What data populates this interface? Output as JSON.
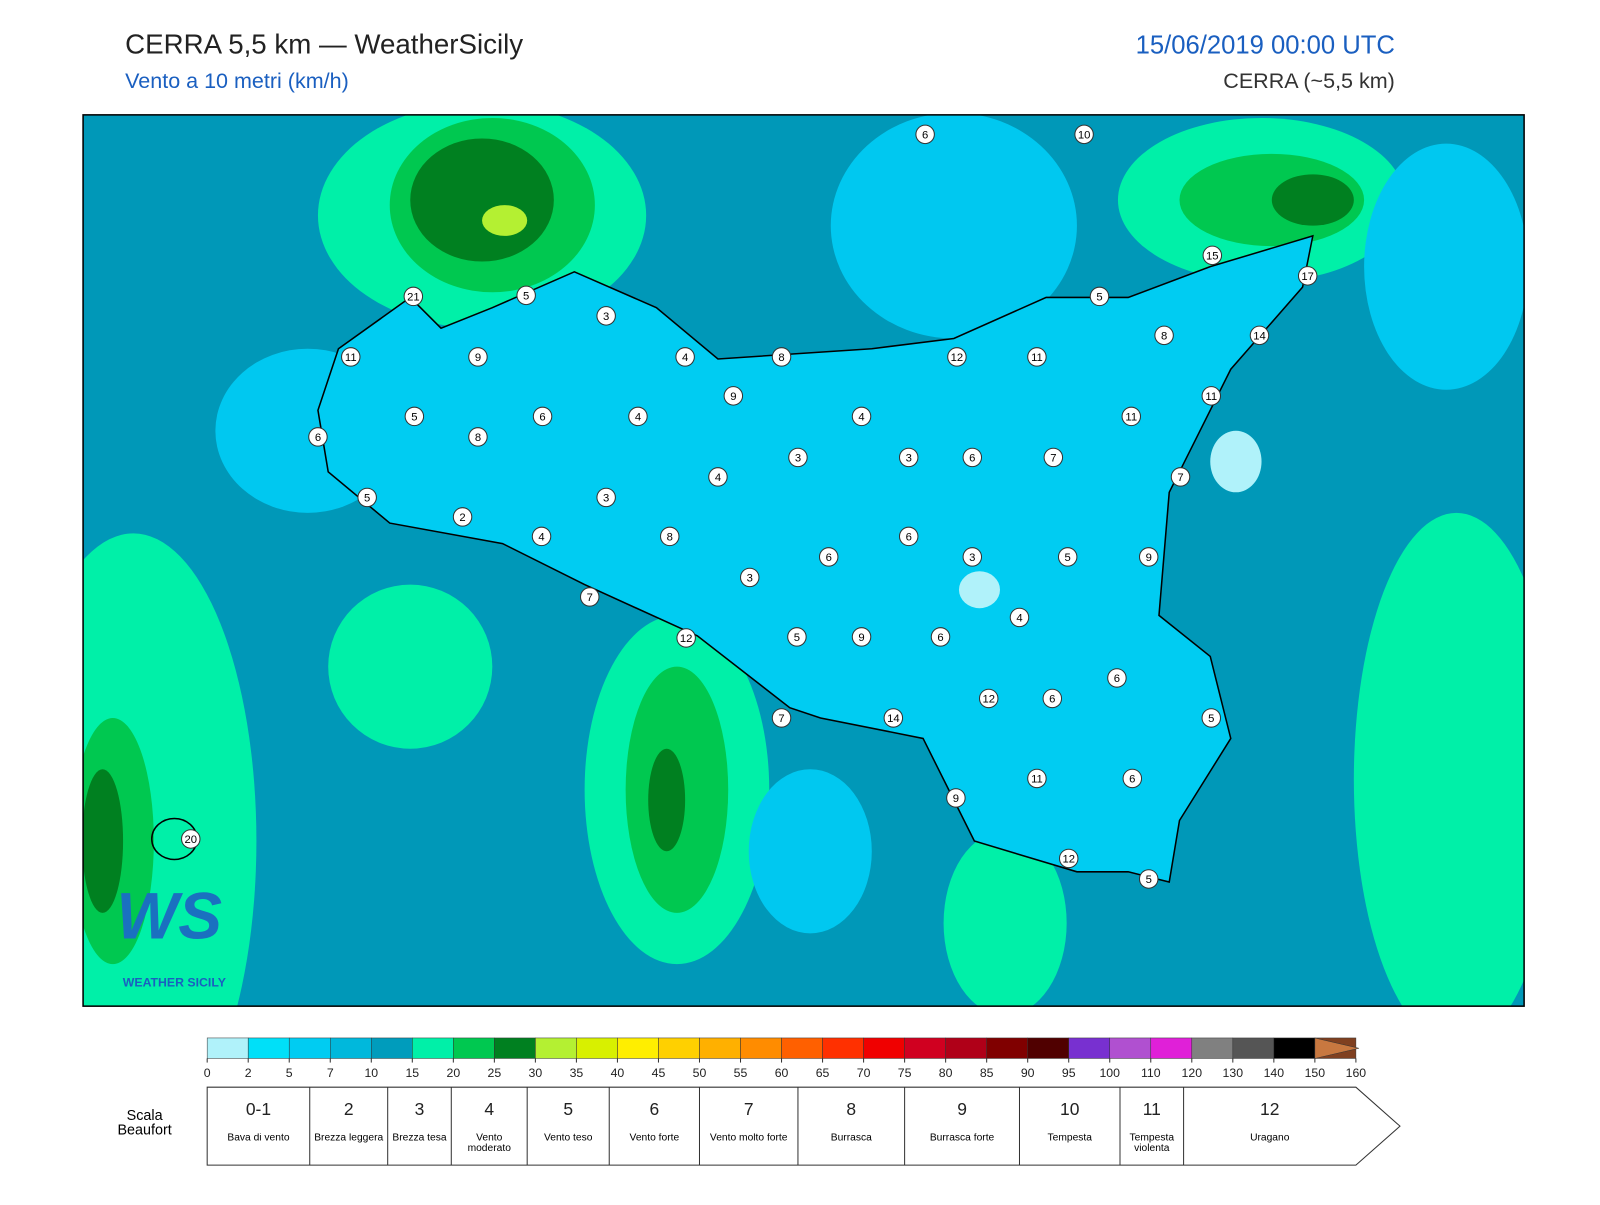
{
  "header": {
    "title": "CERRA 5,5 km — WeatherSicily",
    "subtitle": "Vento a 10 metri (km/h)",
    "date": "15/06/2019 00:00 UTC",
    "model": "CERRA (~5,5 km)"
  },
  "map": {
    "stations": [
      6,
      10,
      15,
      17,
      21,
      5,
      3,
      5,
      8,
      14,
      11,
      9,
      4,
      8,
      12,
      11,
      9,
      11,
      5,
      6,
      4,
      4,
      11,
      6,
      8,
      3,
      3,
      6,
      7,
      4,
      7,
      5,
      3,
      2,
      4,
      8,
      6,
      6,
      3,
      5,
      9,
      3,
      7,
      4,
      12,
      5,
      9,
      6,
      6,
      12,
      6,
      5,
      7,
      14,
      11,
      6,
      9,
      20,
      12,
      5
    ],
    "logo": {
      "mark": "WS",
      "name": "WEATHER SICILY"
    }
  },
  "colorbar": {
    "ticks": [
      0,
      2,
      5,
      7,
      10,
      15,
      20,
      25,
      30,
      35,
      40,
      45,
      50,
      55,
      60,
      65,
      70,
      75,
      80,
      85,
      90,
      95,
      100,
      110,
      120,
      130,
      140,
      150,
      160
    ],
    "colors": [
      "#b0f2fa",
      "#00e0f8",
      "#00ccf2",
      "#00b8dc",
      "#009cbc",
      "#00f0a8",
      "#00c850",
      "#008020",
      "#b4f032",
      "#d8f000",
      "#ffee00",
      "#ffd000",
      "#ffb000",
      "#ff8c00",
      "#ff6000",
      "#ff3000",
      "#f00000",
      "#d00020",
      "#b00018",
      "#800000",
      "#500000",
      "#7830d0",
      "#b050d0",
      "#e020d8",
      "#808080",
      "#555555",
      "#000000",
      "#804020",
      "#c87840"
    ]
  },
  "beaufort": {
    "label": "Scala Beaufort",
    "levels": [
      {
        "force": "0-1",
        "name": "Bava di vento"
      },
      {
        "force": 2,
        "name": "Brezza leggera"
      },
      {
        "force": 3,
        "name": "Brezza tesa"
      },
      {
        "force": 4,
        "name": "Vento moderato"
      },
      {
        "force": 5,
        "name": "Vento teso"
      },
      {
        "force": 6,
        "name": "Vento forte"
      },
      {
        "force": 7,
        "name": "Vento molto forte"
      },
      {
        "force": 8,
        "name": "Burrasca"
      },
      {
        "force": 9,
        "name": "Burrasca forte"
      },
      {
        "force": 10,
        "name": "Tempesta"
      },
      {
        "force": 11,
        "name": "Tempesta violenta"
      },
      {
        "force": 12,
        "name": "Uragano"
      }
    ]
  }
}
